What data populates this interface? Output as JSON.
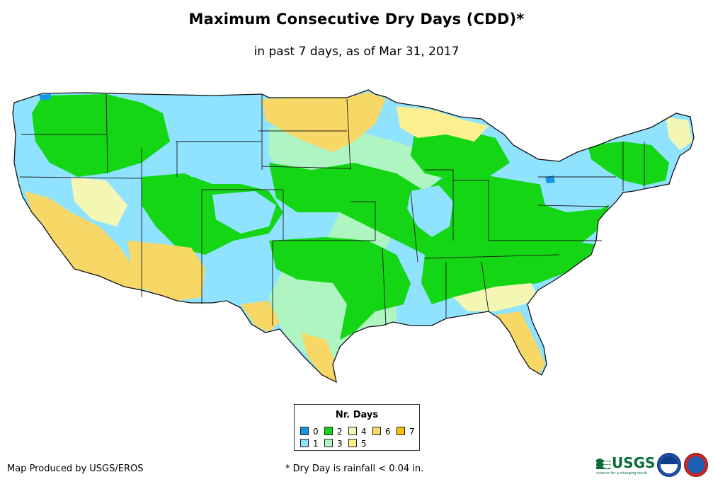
{
  "title": "Maximum Consecutive Dry Days (CDD)*",
  "subtitle": "in past 7 days, as of Mar 31, 2017",
  "legend": {
    "title": "Nr. Days",
    "items": [
      {
        "label": "0",
        "color": "#1496e8"
      },
      {
        "label": "1",
        "color": "#8fe3ff"
      },
      {
        "label": "2",
        "color": "#14d614"
      },
      {
        "label": "3",
        "color": "#aef5c2"
      },
      {
        "label": "4",
        "color": "#f4f7b4"
      },
      {
        "label": "5",
        "color": "#fbef8f"
      },
      {
        "label": "6",
        "color": "#f7d766"
      },
      {
        "label": "7",
        "color": "#f9c200"
      }
    ]
  },
  "credit": "Map Produced by USGS/EROS",
  "footnote": "* Dry Day is rainfall < 0.04 in.",
  "logos": {
    "usgs": "USGS",
    "usgs_tagline": "science for a changing world",
    "noaa": "noaa",
    "nws": "NWS"
  }
}
